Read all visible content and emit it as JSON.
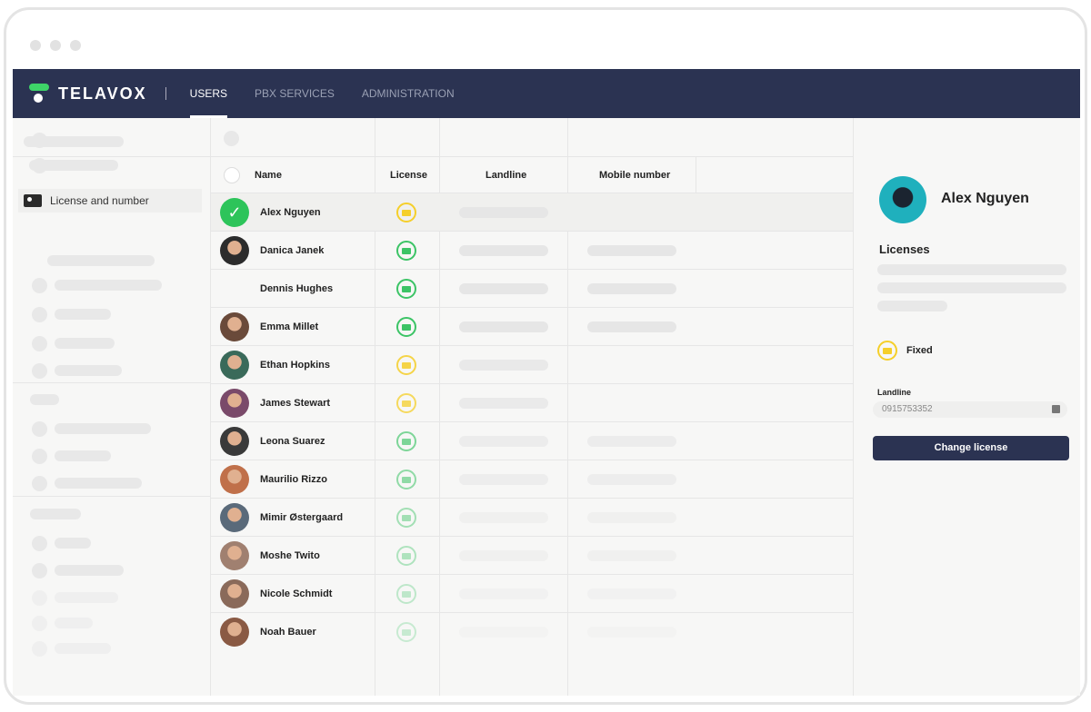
{
  "nav": {
    "brand": "TELAVOX",
    "tabs": [
      {
        "label": "USERS",
        "active": true
      },
      {
        "label": "PBX SERVICES"
      },
      {
        "label": "ADMINISTRATION"
      }
    ]
  },
  "sidebar": {
    "active_item": "License and number"
  },
  "table": {
    "columns": [
      "Name",
      "License",
      "Landline",
      "Mobile number"
    ],
    "rows": [
      {
        "name": "Alex Nguyen",
        "license": "yellow",
        "mobile": false,
        "selected": true,
        "opacity": 1
      },
      {
        "name": "Danica Janek",
        "license": "green",
        "mobile": true,
        "opacity": 1
      },
      {
        "name": "Dennis Hughes",
        "license": "green",
        "mobile": true,
        "opacity": 1,
        "no_avatar": true
      },
      {
        "name": "Emma Millet",
        "license": "green",
        "mobile": true,
        "opacity": 1
      },
      {
        "name": "Ethan Hopkins",
        "license": "yellow",
        "mobile": false,
        "opacity": 0.85
      },
      {
        "name": "James Stewart",
        "license": "yellow",
        "mobile": false,
        "opacity": 0.75
      },
      {
        "name": "Leona Suarez",
        "license": "green",
        "mobile": true,
        "opacity": 0.65
      },
      {
        "name": "Maurilio Rizzo",
        "license": "green",
        "mobile": true,
        "opacity": 0.55
      },
      {
        "name": "Mimir Østergaard",
        "license": "green",
        "mobile": true,
        "opacity": 0.45
      },
      {
        "name": "Moshe Twito",
        "license": "green",
        "mobile": true,
        "opacity": 0.38
      },
      {
        "name": "Nicole Schmidt",
        "license": "green",
        "mobile": true,
        "opacity": 0.3
      },
      {
        "name": "Noah Bauer",
        "license": "green",
        "mobile": true,
        "opacity": 0.25
      }
    ]
  },
  "panel": {
    "name": "Alex Nguyen",
    "licenses_title": "Licenses",
    "license_type": "Fixed",
    "landline_label": "Landline",
    "landline_value": "0915753352",
    "button": "Change license"
  },
  "colors": {
    "yellow": "#f5cf2a",
    "green": "#3cc466",
    "header": "#2b3352",
    "check": "#2dc45a"
  }
}
